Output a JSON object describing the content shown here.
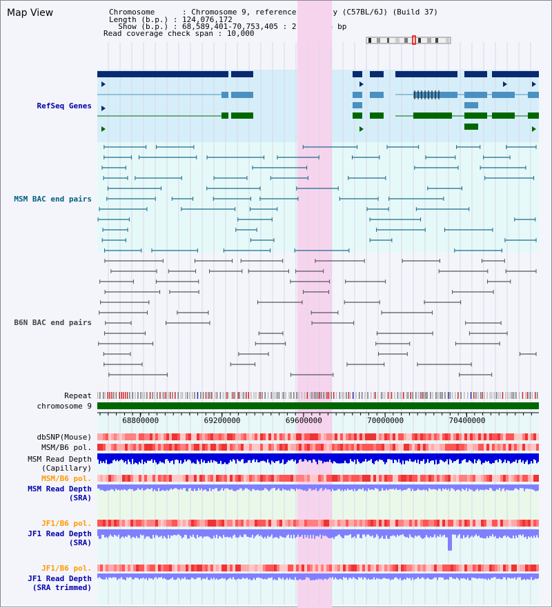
{
  "view_title": "Map View",
  "header": {
    "chromosome_label": "Chromosome      : ",
    "chromosome_value": "Chromosome 9, reference assembly (C57BL/6J) (Build 37)",
    "length_label": "Length (b.p.) : ",
    "length_value": "124,076,172",
    "show_label": "  Show (b.p.) : ",
    "show_value": "68,589,401-70,753,405 : 2,164,005 bp",
    "coverage_label": "Read coverage check span : ",
    "coverage_value": "10,000"
  },
  "tracks": {
    "refseq": {
      "label": "RefSeq Genes",
      "color": "#0000aa"
    },
    "msm_bac": {
      "label": "MSM BAC end pairs",
      "color": "#006080"
    },
    "b6n_bac": {
      "label": "B6N BAC end pairs",
      "color": "#444444"
    },
    "repeat": {
      "label": "Repeat"
    },
    "chromosome": {
      "label": "chromosome 9"
    },
    "dbsnp": {
      "label": "dbSNP(Mouse)"
    },
    "msm_b6_pol": {
      "label": "MSM/B6 pol."
    },
    "msm_read_depth_cap": {
      "label": "MSM Read Depth\n(Capillary)"
    },
    "msm_b6_pol_sra": {
      "label": "MSM/B6 pol.",
      "color": "#ff9900"
    },
    "msm_read_depth_sra": {
      "label": "MSM Read Depth\n(SRA)",
      "color": "#0000aa"
    },
    "jf1_b6_pol": {
      "label": "JF1/B6 pol.",
      "color": "#ff9900"
    },
    "jf1_read_depth_sra": {
      "label": "JF1 Read Depth\n(SRA)",
      "color": "#0000aa"
    },
    "jf1_b6_pol_trim": {
      "label": "JF1/B6 pol.",
      "color": "#ff9900"
    },
    "jf1_read_depth_trim": {
      "label": "JF1 Read Depth\n(SRA trimmed)",
      "color": "#0000aa"
    }
  },
  "axis": {
    "ticks": [
      "68800000",
      "69200000",
      "69600000",
      "70000000",
      "70400000"
    ],
    "tick_values": [
      68800000,
      69200000,
      69600000,
      70000000,
      70400000
    ],
    "range": [
      68589401,
      70753405
    ]
  },
  "highlight": {
    "start": 69570000,
    "end": 69740000,
    "color": "#f7d4ee"
  },
  "colors": {
    "refseq_dark": "#0a2a6e",
    "refseq_mid": "#4a90c0",
    "refseq_green": "#006600",
    "bac_msm": "#1a6a8a",
    "bac_b6n": "#555555",
    "chromosome_green": "#006600",
    "depth_blue": "#0000ee",
    "depth_light": "#8080ff",
    "pol_red": "#ff6666"
  }
}
